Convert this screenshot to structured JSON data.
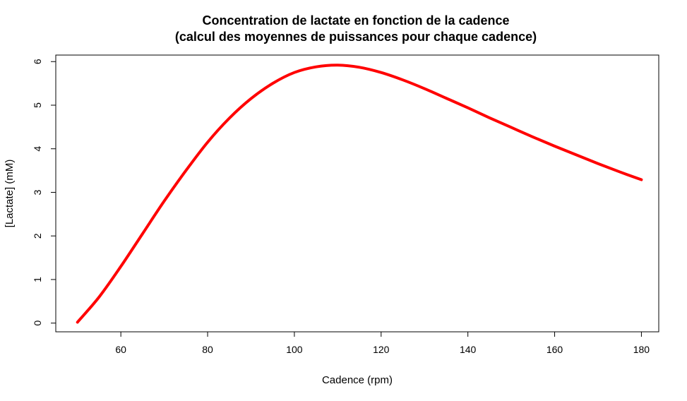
{
  "chart_data": {
    "type": "line",
    "title_line1": "Concentration de lactate en fonction de la cadence",
    "title_line2": "(calcul des moyennes de puissances pour chaque cadence)",
    "xlabel": "Cadence (rpm)",
    "ylabel": "[Lactate] (mM)",
    "xlim": [
      45,
      184
    ],
    "ylim": [
      -0.2,
      6.15
    ],
    "x_ticks": [
      60,
      80,
      100,
      120,
      140,
      160,
      180
    ],
    "y_ticks": [
      0,
      1,
      2,
      3,
      4,
      5,
      6
    ],
    "grid": false,
    "legend": "none",
    "series": [
      {
        "color": "#ff0000",
        "x": [
          50,
          55,
          60,
          65,
          70,
          75,
          80,
          85,
          90,
          95,
          100,
          105,
          110,
          115,
          120,
          125,
          130,
          135,
          140,
          145,
          150,
          155,
          160,
          165,
          170,
          175,
          180
        ],
        "y": [
          0.02,
          0.6,
          1.3,
          2.05,
          2.8,
          3.5,
          4.15,
          4.7,
          5.15,
          5.5,
          5.75,
          5.88,
          5.92,
          5.87,
          5.75,
          5.58,
          5.38,
          5.16,
          4.94,
          4.71,
          4.49,
          4.27,
          4.06,
          3.86,
          3.66,
          3.47,
          3.29
        ]
      }
    ]
  }
}
